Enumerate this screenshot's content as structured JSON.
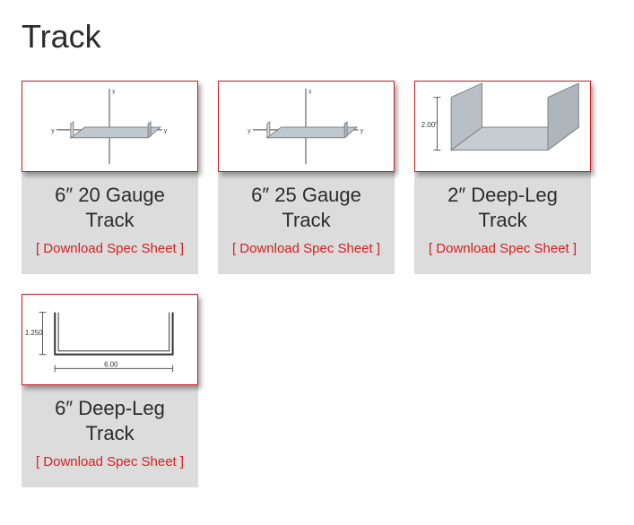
{
  "heading": "Track",
  "download_label": "[ Download Spec Sheet ]",
  "colors": {
    "card_bg": "#dcdcdc",
    "thumb_border": "#cc1a1a",
    "link": "#d42020",
    "text": "#2b2b2b"
  },
  "products": [
    {
      "title": "6″ 20 Gauge Track",
      "thumb_kind": "channel-axes",
      "icon_name": "channel-axes-icon"
    },
    {
      "title": "6″ 25 Gauge Track",
      "thumb_kind": "channel-axes",
      "icon_name": "channel-axes-icon"
    },
    {
      "title": "2″ Deep-Leg Track",
      "thumb_kind": "deep-leg-3d",
      "icon_name": "deep-leg-3d-icon",
      "dim_label": "2.00\""
    },
    {
      "title": "6″ Deep-Leg Track",
      "thumb_kind": "deep-leg-2d",
      "icon_name": "deep-leg-2d-icon",
      "dim_h": "1.250",
      "dim_w": "6.00"
    }
  ]
}
